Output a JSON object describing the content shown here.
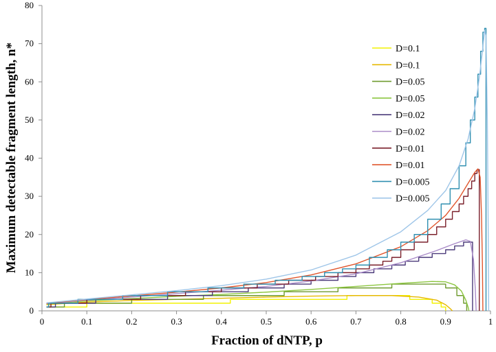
{
  "chart_data": {
    "type": "line",
    "xlabel": "Fraction of dNTP, p",
    "ylabel": "Maximum detectable fragment length, n*",
    "xlim": [
      0,
      1
    ],
    "ylim": [
      0,
      80
    ],
    "x_ticks": [
      "0",
      "0.1",
      "0.2",
      "0.3",
      "0.4",
      "0.5",
      "0.6",
      "0.7",
      "0.8",
      "0.9",
      "1"
    ],
    "y_ticks": [
      "0",
      "10",
      "20",
      "30",
      "40",
      "50",
      "60",
      "70",
      "80"
    ],
    "grid": false,
    "legend_position": "right",
    "series": [
      {
        "name": "D=0.1",
        "style": "step",
        "color": "#f2f200",
        "points": [
          [
            0.01,
            1
          ],
          [
            0.1,
            1
          ],
          [
            0.1,
            2
          ],
          [
            0.42,
            2
          ],
          [
            0.42,
            3
          ],
          [
            0.68,
            3
          ],
          [
            0.68,
            4
          ],
          [
            0.82,
            4
          ],
          [
            0.82,
            3
          ],
          [
            0.87,
            3
          ],
          [
            0.87,
            2
          ],
          [
            0.89,
            2
          ],
          [
            0.89,
            1
          ],
          [
            0.9,
            1
          ],
          [
            0.9,
            0
          ]
        ]
      },
      {
        "name": "D=0.1",
        "style": "smooth",
        "color": "#e6b800",
        "points": [
          [
            0.01,
            1.6
          ],
          [
            0.1,
            2.3
          ],
          [
            0.2,
            2.7
          ],
          [
            0.3,
            3.0
          ],
          [
            0.4,
            3.3
          ],
          [
            0.5,
            3.6
          ],
          [
            0.6,
            3.85
          ],
          [
            0.7,
            4.0
          ],
          [
            0.78,
            4.0
          ],
          [
            0.84,
            3.6
          ],
          [
            0.88,
            2.8
          ],
          [
            0.9,
            1.6
          ],
          [
            0.91,
            0.6
          ],
          [
            0.915,
            0
          ]
        ]
      },
      {
        "name": "D=0.05",
        "style": "step",
        "color": "#6e9a2e",
        "points": [
          [
            0.01,
            1
          ],
          [
            0.05,
            1
          ],
          [
            0.05,
            2
          ],
          [
            0.2,
            2
          ],
          [
            0.2,
            3
          ],
          [
            0.36,
            3
          ],
          [
            0.36,
            4
          ],
          [
            0.54,
            4
          ],
          [
            0.54,
            5
          ],
          [
            0.66,
            5
          ],
          [
            0.66,
            6
          ],
          [
            0.78,
            6
          ],
          [
            0.78,
            7
          ],
          [
            0.9,
            7
          ],
          [
            0.9,
            6
          ],
          [
            0.925,
            6
          ],
          [
            0.925,
            4
          ],
          [
            0.94,
            4
          ],
          [
            0.94,
            2
          ],
          [
            0.947,
            2
          ],
          [
            0.947,
            0
          ]
        ]
      },
      {
        "name": "D=0.05",
        "style": "smooth",
        "color": "#8cc63f",
        "points": [
          [
            0.01,
            1.8
          ],
          [
            0.1,
            2.6
          ],
          [
            0.2,
            3.2
          ],
          [
            0.3,
            3.8
          ],
          [
            0.4,
            4.3
          ],
          [
            0.5,
            4.9
          ],
          [
            0.6,
            5.6
          ],
          [
            0.7,
            6.4
          ],
          [
            0.8,
            7.2
          ],
          [
            0.87,
            7.7
          ],
          [
            0.9,
            7.6
          ],
          [
            0.92,
            6.8
          ],
          [
            0.935,
            5.2
          ],
          [
            0.945,
            2.8
          ],
          [
            0.95,
            1.0
          ],
          [
            0.952,
            0
          ]
        ]
      },
      {
        "name": "D=0.02",
        "style": "step",
        "color": "#4b3a7a",
        "points": [
          [
            0.01,
            1
          ],
          [
            0.03,
            1
          ],
          [
            0.03,
            2
          ],
          [
            0.12,
            2
          ],
          [
            0.12,
            3
          ],
          [
            0.28,
            3
          ],
          [
            0.28,
            4
          ],
          [
            0.38,
            4
          ],
          [
            0.38,
            5
          ],
          [
            0.46,
            5
          ],
          [
            0.46,
            6
          ],
          [
            0.54,
            6
          ],
          [
            0.54,
            7
          ],
          [
            0.6,
            7
          ],
          [
            0.6,
            8
          ],
          [
            0.66,
            8
          ],
          [
            0.66,
            9
          ],
          [
            0.7,
            9
          ],
          [
            0.7,
            10
          ],
          [
            0.74,
            10
          ],
          [
            0.74,
            11
          ],
          [
            0.78,
            11
          ],
          [
            0.78,
            12
          ],
          [
            0.81,
            12
          ],
          [
            0.81,
            13
          ],
          [
            0.84,
            13
          ],
          [
            0.84,
            14
          ],
          [
            0.87,
            14
          ],
          [
            0.87,
            15
          ],
          [
            0.9,
            15
          ],
          [
            0.9,
            16
          ],
          [
            0.92,
            16
          ],
          [
            0.92,
            17
          ],
          [
            0.94,
            17
          ],
          [
            0.94,
            18
          ],
          [
            0.96,
            18
          ],
          [
            0.96,
            0
          ]
        ]
      },
      {
        "name": "D=0.02",
        "style": "smooth",
        "color": "#a98bc8",
        "points": [
          [
            0.01,
            1.9
          ],
          [
            0.1,
            2.8
          ],
          [
            0.2,
            3.6
          ],
          [
            0.3,
            4.5
          ],
          [
            0.4,
            5.4
          ],
          [
            0.5,
            6.4
          ],
          [
            0.6,
            7.8
          ],
          [
            0.7,
            9.7
          ],
          [
            0.8,
            12.6
          ],
          [
            0.88,
            15.8
          ],
          [
            0.92,
            17.6
          ],
          [
            0.945,
            18.6
          ],
          [
            0.955,
            18.2
          ],
          [
            0.962,
            13.5
          ],
          [
            0.966,
            6.0
          ],
          [
            0.968,
            0
          ]
        ]
      },
      {
        "name": "D=0.01",
        "style": "step",
        "color": "#7a1f2a",
        "points": [
          [
            0.01,
            1
          ],
          [
            0.02,
            1
          ],
          [
            0.02,
            2
          ],
          [
            0.1,
            2
          ],
          [
            0.1,
            3
          ],
          [
            0.22,
            3
          ],
          [
            0.22,
            4
          ],
          [
            0.32,
            4
          ],
          [
            0.32,
            5
          ],
          [
            0.4,
            5
          ],
          [
            0.4,
            6
          ],
          [
            0.48,
            6
          ],
          [
            0.48,
            7
          ],
          [
            0.55,
            7
          ],
          [
            0.55,
            8
          ],
          [
            0.61,
            8
          ],
          [
            0.61,
            9
          ],
          [
            0.66,
            9
          ],
          [
            0.66,
            10
          ],
          [
            0.7,
            10
          ],
          [
            0.7,
            11
          ],
          [
            0.73,
            11
          ],
          [
            0.73,
            12
          ],
          [
            0.76,
            12
          ],
          [
            0.76,
            13
          ],
          [
            0.78,
            13
          ],
          [
            0.78,
            14
          ],
          [
            0.8,
            14
          ],
          [
            0.8,
            16
          ],
          [
            0.83,
            16
          ],
          [
            0.83,
            18
          ],
          [
            0.86,
            18
          ],
          [
            0.86,
            20
          ],
          [
            0.88,
            20
          ],
          [
            0.88,
            22
          ],
          [
            0.9,
            22
          ],
          [
            0.9,
            24
          ],
          [
            0.915,
            24
          ],
          [
            0.915,
            26
          ],
          [
            0.93,
            26
          ],
          [
            0.93,
            28
          ],
          [
            0.94,
            28
          ],
          [
            0.94,
            30
          ],
          [
            0.95,
            30
          ],
          [
            0.95,
            32
          ],
          [
            0.958,
            32
          ],
          [
            0.958,
            34
          ],
          [
            0.965,
            34
          ],
          [
            0.965,
            36
          ],
          [
            0.97,
            36
          ],
          [
            0.97,
            37
          ],
          [
            0.975,
            37
          ],
          [
            0.975,
            0
          ]
        ]
      },
      {
        "name": "D=0.01",
        "style": "smooth",
        "color": "#e0562d",
        "points": [
          [
            0.01,
            2.0
          ],
          [
            0.1,
            3.0
          ],
          [
            0.2,
            3.9
          ],
          [
            0.3,
            4.9
          ],
          [
            0.4,
            6.0
          ],
          [
            0.5,
            7.4
          ],
          [
            0.6,
            9.4
          ],
          [
            0.7,
            12.3
          ],
          [
            0.8,
            16.8
          ],
          [
            0.86,
            21.0
          ],
          [
            0.9,
            25.0
          ],
          [
            0.93,
            29.5
          ],
          [
            0.95,
            33.4
          ],
          [
            0.965,
            36.3
          ],
          [
            0.972,
            37.2
          ],
          [
            0.977,
            35.0
          ],
          [
            0.98,
            25.0
          ],
          [
            0.982,
            12.0
          ],
          [
            0.983,
            0
          ]
        ]
      },
      {
        "name": "D=0.005",
        "style": "step",
        "color": "#2f8fb0",
        "points": [
          [
            0.01,
            1
          ],
          [
            0.015,
            1
          ],
          [
            0.015,
            2
          ],
          [
            0.08,
            2
          ],
          [
            0.08,
            3
          ],
          [
            0.18,
            3
          ],
          [
            0.18,
            4
          ],
          [
            0.28,
            4
          ],
          [
            0.28,
            5
          ],
          [
            0.37,
            5
          ],
          [
            0.37,
            6
          ],
          [
            0.45,
            6
          ],
          [
            0.45,
            7
          ],
          [
            0.52,
            7
          ],
          [
            0.52,
            8
          ],
          [
            0.58,
            8
          ],
          [
            0.58,
            9
          ],
          [
            0.63,
            9
          ],
          [
            0.63,
            10
          ],
          [
            0.67,
            10
          ],
          [
            0.67,
            11
          ],
          [
            0.7,
            11
          ],
          [
            0.7,
            12
          ],
          [
            0.73,
            12
          ],
          [
            0.73,
            14
          ],
          [
            0.77,
            14
          ],
          [
            0.77,
            16
          ],
          [
            0.8,
            16
          ],
          [
            0.8,
            18
          ],
          [
            0.83,
            18
          ],
          [
            0.83,
            20
          ],
          [
            0.86,
            20
          ],
          [
            0.86,
            24
          ],
          [
            0.89,
            24
          ],
          [
            0.89,
            28
          ],
          [
            0.91,
            28
          ],
          [
            0.91,
            32
          ],
          [
            0.93,
            32
          ],
          [
            0.93,
            38
          ],
          [
            0.945,
            38
          ],
          [
            0.945,
            44
          ],
          [
            0.955,
            44
          ],
          [
            0.955,
            50
          ],
          [
            0.965,
            50
          ],
          [
            0.965,
            56
          ],
          [
            0.972,
            56
          ],
          [
            0.972,
            62
          ],
          [
            0.978,
            62
          ],
          [
            0.978,
            68
          ],
          [
            0.983,
            68
          ],
          [
            0.983,
            73
          ],
          [
            0.987,
            73
          ],
          [
            0.987,
            74
          ],
          [
            0.99,
            74
          ],
          [
            0.99,
            0
          ]
        ]
      },
      {
        "name": "D=0.005",
        "style": "smooth",
        "color": "#9ec5e8",
        "points": [
          [
            0.01,
            2.1
          ],
          [
            0.1,
            3.1
          ],
          [
            0.2,
            4.2
          ],
          [
            0.3,
            5.3
          ],
          [
            0.4,
            6.6
          ],
          [
            0.5,
            8.3
          ],
          [
            0.6,
            10.7
          ],
          [
            0.7,
            14.6
          ],
          [
            0.8,
            20.7
          ],
          [
            0.86,
            26.3
          ],
          [
            0.9,
            31.5
          ],
          [
            0.93,
            38.0
          ],
          [
            0.95,
            45.0
          ],
          [
            0.965,
            53.0
          ],
          [
            0.975,
            61.0
          ],
          [
            0.982,
            68.0
          ],
          [
            0.987,
            73.5
          ],
          [
            0.99,
            72.0
          ],
          [
            0.993,
            50.0
          ],
          [
            0.995,
            20.0
          ],
          [
            0.996,
            0
          ]
        ]
      }
    ]
  }
}
